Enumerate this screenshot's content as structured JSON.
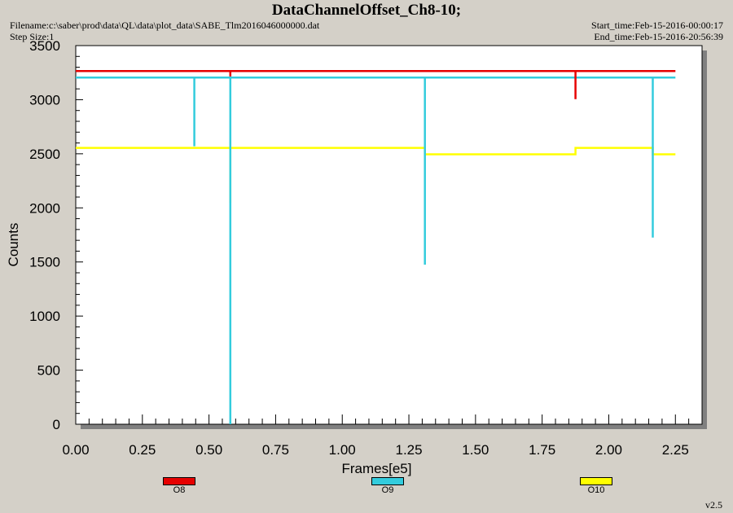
{
  "header": {
    "title": "DataChannelOffset_Ch8-10;",
    "filename": "Filename:c:\\saber\\prod\\data\\QL\\data\\plot_data\\SABE_Tlm2016046000000.dat",
    "step_size": "Step Size:1",
    "start_time": "Start_time:Feb-15-2016-00:00:17",
    "end_time": "End_time:Feb-15-2016-20:56:39"
  },
  "version": "v2.5",
  "colors": {
    "O8": "#e60000",
    "O9": "#33ccdd",
    "O10": "#ffff00"
  },
  "chart_data": {
    "type": "line",
    "title": "DataChannelOffset_Ch8-10;",
    "xlabel": "Frames[e5]",
    "ylabel": "Counts",
    "xlim": [
      0,
      2.35
    ],
    "ylim": [
      0,
      3500
    ],
    "xticks": [
      "0.00",
      "0.25",
      "0.50",
      "0.75",
      "1.00",
      "1.25",
      "1.50",
      "1.75",
      "2.00",
      "2.25"
    ],
    "yticks": [
      "0",
      "500",
      "1000",
      "1500",
      "2000",
      "2500",
      "3000",
      "3500"
    ],
    "grid": false,
    "legend_position": "bottom",
    "series": [
      {
        "name": "O8",
        "color": "#e60000",
        "x": [
          0,
          0.58,
          0.58,
          0.58,
          1.875,
          1.875,
          1.875,
          2.25
        ],
        "y": [
          3265,
          3265,
          3215,
          3265,
          3265,
          3005,
          3265,
          3265
        ]
      },
      {
        "name": "O9",
        "color": "#33ccdd",
        "x": [
          0,
          0.445,
          0.445,
          0.445,
          0.58,
          0.58,
          0.58,
          1.31,
          1.31,
          1.31,
          2.165,
          2.165,
          2.165,
          2.25
        ],
        "y": [
          3205,
          3205,
          2570,
          3205,
          3205,
          0,
          3205,
          3205,
          1475,
          3205,
          3205,
          1725,
          3205,
          3205
        ]
      },
      {
        "name": "O10",
        "color": "#ffff00",
        "x": [
          0,
          0.58,
          0.58,
          0.58,
          1.31,
          1.31,
          1.875,
          1.875,
          2.165,
          2.165,
          2.25
        ],
        "y": [
          2555,
          2555,
          2045,
          2555,
          2555,
          2495,
          2495,
          2555,
          2555,
          2495,
          2495
        ]
      }
    ]
  }
}
